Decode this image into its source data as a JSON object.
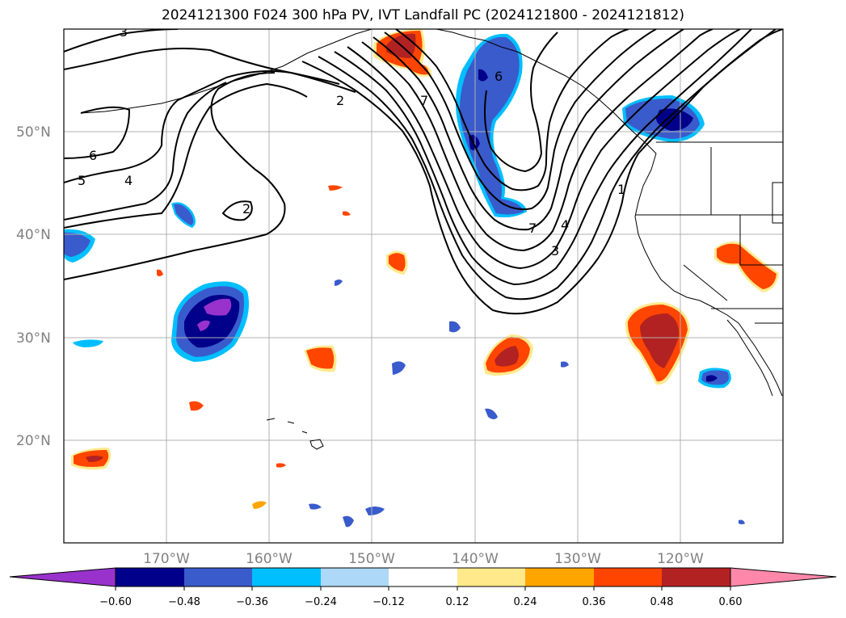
{
  "title": "2024121300 F024 300 hPa PV, IVT Landfall PC (2024121800 - 2024121812)",
  "map": {
    "lon_range": [
      -180,
      -110
    ],
    "lat_range": [
      10,
      60
    ],
    "lat_labels": [
      "50°N",
      "40°N",
      "30°N",
      "20°N"
    ],
    "lon_labels": [
      "170°W",
      "160°W",
      "150°W",
      "140°W",
      "130°W",
      "120°W"
    ],
    "contour_labels": [
      "3",
      "6",
      "5",
      "4",
      "2",
      "2",
      "7",
      "6",
      "7",
      "4",
      "3",
      "1"
    ]
  },
  "colorbar": {
    "ticks": [
      "−0.60",
      "−0.48",
      "−0.36",
      "−0.24",
      "−0.12",
      "0.12",
      "0.24",
      "0.36",
      "0.48",
      "0.60"
    ],
    "colors": [
      "#9932cc",
      "#00008b",
      "#3a5bcc",
      "#00bfff",
      "#add8f7",
      "#ffffff",
      "#ffe98a",
      "#ffa500",
      "#ff4500",
      "#b22222",
      "#ff88aa"
    ]
  },
  "colors": {
    "neg_strong": "#7b22c8",
    "neg_dark": "#00008b",
    "neg_mid": "#3a5bcc",
    "neg_light": "#00bfff",
    "pos_light": "#ffe98a",
    "pos_mid": "#ffa500",
    "pos_orange": "#ff4500",
    "pos_dark": "#b22222"
  }
}
